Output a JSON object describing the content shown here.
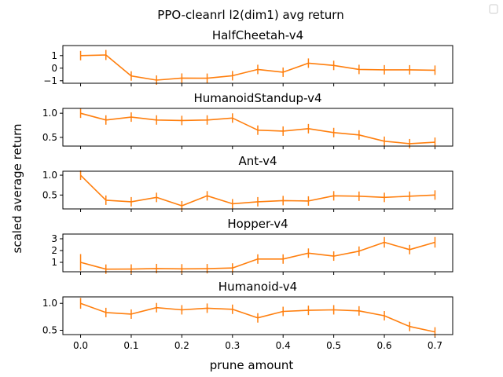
{
  "title": "PPO-cleanrl l2(dim1) avg return",
  "xlabel": "prune amount",
  "ylabel": "scaled average return",
  "colors": {
    "series": "#ff7f0e",
    "axis": "#000000"
  },
  "chart_data": [
    {
      "type": "line",
      "title": "HalfCheetah-v4",
      "x": [
        0.0,
        0.05,
        0.1,
        0.15,
        0.2,
        0.25,
        0.3,
        0.35,
        0.4,
        0.45,
        0.5,
        0.55,
        0.6,
        0.65,
        0.7
      ],
      "values": [
        1.0,
        1.05,
        -0.62,
        -0.95,
        -0.79,
        -0.8,
        -0.6,
        -0.1,
        -0.32,
        0.4,
        0.22,
        -0.1,
        -0.13,
        -0.13,
        -0.16
      ],
      "errors": [
        0.06,
        0.4,
        0.0,
        0.0,
        0.0,
        0.0,
        0.0,
        0.0,
        0.0,
        0.0,
        0.0,
        0.0,
        0.0,
        0.0,
        0.0
      ],
      "ylim": [
        -1.2,
        1.8
      ],
      "yticks": [
        -1,
        0,
        1
      ],
      "ytick_labels": [
        "−1",
        "0",
        "1"
      ]
    },
    {
      "type": "line",
      "title": "HumanoidStandup-v4",
      "x": [
        0.0,
        0.05,
        0.1,
        0.15,
        0.2,
        0.25,
        0.3,
        0.35,
        0.4,
        0.45,
        0.5,
        0.55,
        0.6,
        0.65,
        0.7
      ],
      "values": [
        1.0,
        0.86,
        0.92,
        0.86,
        0.85,
        0.86,
        0.9,
        0.65,
        0.63,
        0.68,
        0.6,
        0.55,
        0.42,
        0.37,
        0.4
      ],
      "errors": [
        0.06,
        0.05,
        0.06,
        0.07,
        0.06,
        0.05,
        0.05,
        0.04,
        0.06,
        0.07,
        0.06,
        0.03,
        0.02,
        0.02,
        0.03
      ],
      "ylim": [
        0.32,
        1.1
      ],
      "yticks": [
        0.5,
        1.0
      ],
      "ytick_labels": [
        "0.5",
        "1.0"
      ]
    },
    {
      "type": "line",
      "title": "Ant-v4",
      "x": [
        0.0,
        0.05,
        0.1,
        0.15,
        0.2,
        0.25,
        0.3,
        0.35,
        0.4,
        0.45,
        0.5,
        0.55,
        0.6,
        0.65,
        0.7
      ],
      "values": [
        1.0,
        0.37,
        0.33,
        0.44,
        0.23,
        0.48,
        0.28,
        0.33,
        0.36,
        0.35,
        0.48,
        0.47,
        0.44,
        0.47,
        0.5
      ],
      "errors": [
        0.1,
        0.0,
        0.0,
        0.0,
        0.0,
        0.0,
        0.0,
        0.0,
        0.0,
        0.0,
        0.0,
        0.0,
        0.0,
        0.0,
        0.0
      ],
      "ylim": [
        0.15,
        1.1
      ],
      "yticks": [
        0.5,
        1.0
      ],
      "ytick_labels": [
        "0.5",
        "1.0"
      ]
    },
    {
      "type": "line",
      "title": "Hopper-v4",
      "x": [
        0.0,
        0.05,
        0.1,
        0.15,
        0.2,
        0.25,
        0.3,
        0.35,
        0.4,
        0.45,
        0.5,
        0.55,
        0.6,
        0.65,
        0.7
      ],
      "values": [
        1.0,
        0.42,
        0.43,
        0.47,
        0.45,
        0.46,
        0.52,
        1.28,
        1.28,
        1.78,
        1.53,
        1.95,
        2.7,
        2.08,
        2.7
      ],
      "errors": [
        0.7,
        0.0,
        0.0,
        0.0,
        0.0,
        0.0,
        0.0,
        0.0,
        0.0,
        0.0,
        0.0,
        0.2,
        0.45,
        0.0,
        0.45
      ],
      "ylim": [
        0.2,
        3.4
      ],
      "yticks": [
        1,
        2,
        3
      ],
      "ytick_labels": [
        "1",
        "2",
        "3"
      ]
    },
    {
      "type": "line",
      "title": "Humanoid-v4",
      "x": [
        0.0,
        0.05,
        0.1,
        0.15,
        0.2,
        0.25,
        0.3,
        0.35,
        0.4,
        0.45,
        0.5,
        0.55,
        0.6,
        0.65,
        0.7
      ],
      "values": [
        1.0,
        0.83,
        0.8,
        0.92,
        0.88,
        0.91,
        0.89,
        0.73,
        0.85,
        0.87,
        0.88,
        0.86,
        0.77,
        0.57,
        0.47
      ],
      "errors": [
        0.1,
        0.03,
        0.03,
        0.05,
        0.05,
        0.03,
        0.03,
        0.05,
        0.04,
        0.03,
        0.03,
        0.03,
        0.03,
        0.02,
        0.02
      ],
      "ylim": [
        0.42,
        1.12
      ],
      "yticks": [
        0.5,
        1.0
      ],
      "ytick_labels": [
        "0.5",
        "1.0"
      ]
    }
  ],
  "xaxis": {
    "xlim": [
      -0.035,
      0.735
    ],
    "ticks": [
      0.0,
      0.1,
      0.2,
      0.3,
      0.4,
      0.5,
      0.6,
      0.7
    ],
    "tick_labels": [
      "0.0",
      "0.1",
      "0.2",
      "0.3",
      "0.4",
      "0.5",
      "0.6",
      "0.7"
    ]
  },
  "legend": {
    "placement": "top-right",
    "entries": []
  }
}
